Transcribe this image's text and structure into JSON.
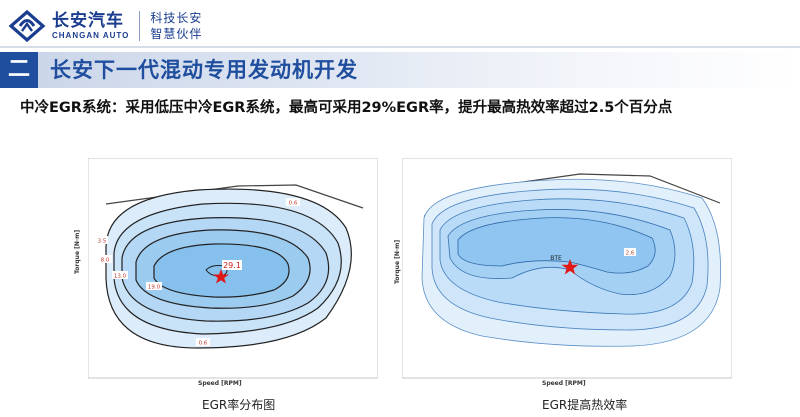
{
  "header": {
    "brand_cn": "长安汽车",
    "brand_en": "CHANGAN AUTO",
    "slogan_line1": "科技长安",
    "slogan_line2": "智慧伙伴"
  },
  "section": {
    "number": "二",
    "title": "长安下一代混动专用发动机开发"
  },
  "subtitle": "中冷EGR系统：采用低压中冷EGR系统，最高可采用29%EGR率，提升最高热效率超过2.5个百分点",
  "charts": [
    {
      "caption": "EGR率分布图",
      "xlabel": "Speed [RPM]",
      "ylabel": "Torque [N·m]",
      "peak_label": "29.1",
      "contour_labels": [
        "0.6",
        "3.5",
        "8.0",
        "13.0",
        "19.0",
        "0.6"
      ]
    },
    {
      "caption": "EGR提高热效率",
      "xlabel": "Speed [RPM]",
      "ylabel": "Torque [N·m]",
      "peak_label": "BTE",
      "contour_labels": [
        "2.6"
      ]
    }
  ],
  "colors": {
    "brand_blue": "#1f4e9e",
    "marker_red": "#e01818",
    "contour_fill": "#a9d4f5"
  }
}
